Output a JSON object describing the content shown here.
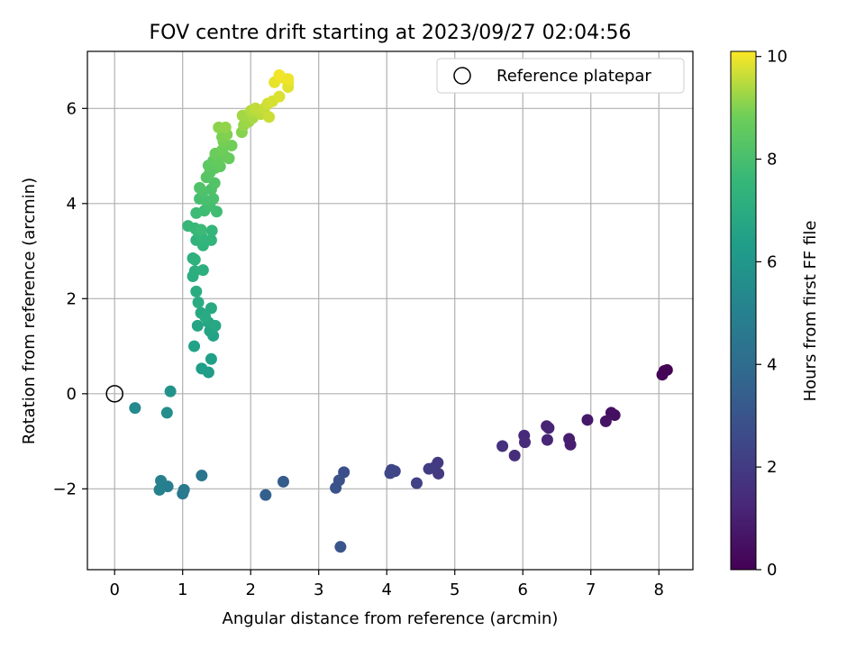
{
  "chart_data": {
    "type": "scatter",
    "title": "FOV centre drift starting at 2023/09/27 02:04:56",
    "xlabel": "Angular distance from reference (arcmin)",
    "ylabel": "Rotation from reference (arcmin)",
    "xlim": [
      -0.4,
      8.5
    ],
    "ylim": [
      -3.7,
      7.2
    ],
    "x_ticks": [
      0,
      1,
      2,
      3,
      4,
      5,
      6,
      7,
      8
    ],
    "y_ticks": [
      -2,
      0,
      2,
      4,
      6
    ],
    "grid": true,
    "legend": {
      "placement": "top-right",
      "entries": [
        "Reference platepar"
      ]
    },
    "reference_point": {
      "x": 0,
      "y": 0
    },
    "colorbar": {
      "label": "Hours from first FF file",
      "range": [
        0,
        10.1
      ],
      "ticks": [
        0,
        2,
        4,
        6,
        8,
        10
      ],
      "colormap": "viridis"
    },
    "points": [
      {
        "x": 8.08,
        "y": 0.48,
        "t": 0.0
      },
      {
        "x": 8.12,
        "y": 0.5,
        "t": 0.05
      },
      {
        "x": 8.05,
        "y": 0.4,
        "t": 0.1
      },
      {
        "x": 7.35,
        "y": -0.45,
        "t": 0.45
      },
      {
        "x": 7.3,
        "y": -0.4,
        "t": 0.5
      },
      {
        "x": 7.22,
        "y": -0.58,
        "t": 0.6
      },
      {
        "x": 6.95,
        "y": -0.55,
        "t": 0.75
      },
      {
        "x": 6.68,
        "y": -0.95,
        "t": 0.9
      },
      {
        "x": 6.7,
        "y": -1.07,
        "t": 0.95
      },
      {
        "x": 6.35,
        "y": -0.68,
        "t": 1.1
      },
      {
        "x": 6.38,
        "y": -0.72,
        "t": 1.15
      },
      {
        "x": 6.36,
        "y": -0.97,
        "t": 1.2
      },
      {
        "x": 6.02,
        "y": -0.88,
        "t": 1.35
      },
      {
        "x": 6.03,
        "y": -1.02,
        "t": 1.4
      },
      {
        "x": 5.88,
        "y": -1.3,
        "t": 1.5
      },
      {
        "x": 5.7,
        "y": -1.1,
        "t": 1.6
      },
      {
        "x": 4.75,
        "y": -1.45,
        "t": 1.9
      },
      {
        "x": 4.76,
        "y": -1.68,
        "t": 1.95
      },
      {
        "x": 4.7,
        "y": -1.55,
        "t": 2.0
      },
      {
        "x": 4.62,
        "y": -1.58,
        "t": 2.05
      },
      {
        "x": 4.44,
        "y": -1.88,
        "t": 2.2
      },
      {
        "x": 4.12,
        "y": -1.63,
        "t": 2.35
      },
      {
        "x": 4.07,
        "y": -1.6,
        "t": 2.4
      },
      {
        "x": 4.05,
        "y": -1.67,
        "t": 2.45
      },
      {
        "x": 3.37,
        "y": -1.65,
        "t": 2.75
      },
      {
        "x": 3.3,
        "y": -1.82,
        "t": 2.85
      },
      {
        "x": 3.25,
        "y": -1.98,
        "t": 2.9
      },
      {
        "x": 3.32,
        "y": -3.22,
        "t": 3.0
      },
      {
        "x": 2.48,
        "y": -1.85,
        "t": 3.3
      },
      {
        "x": 2.22,
        "y": -2.13,
        "t": 3.45
      },
      {
        "x": 1.28,
        "y": -1.72,
        "t": 4.4
      },
      {
        "x": 1.02,
        "y": -2.02,
        "t": 4.6
      },
      {
        "x": 1.0,
        "y": -2.1,
        "t": 4.65
      },
      {
        "x": 0.78,
        "y": -1.95,
        "t": 4.85
      },
      {
        "x": 0.68,
        "y": -1.83,
        "t": 4.95
      },
      {
        "x": 0.66,
        "y": -2.02,
        "t": 5.0
      },
      {
        "x": 0.3,
        "y": -0.3,
        "t": 5.4
      },
      {
        "x": 0.77,
        "y": -0.4,
        "t": 5.6
      },
      {
        "x": 0.82,
        "y": 0.05,
        "t": 5.8
      },
      {
        "x": 1.38,
        "y": 0.45,
        "t": 6.2
      },
      {
        "x": 1.28,
        "y": 0.53,
        "t": 6.3
      },
      {
        "x": 1.42,
        "y": 0.73,
        "t": 6.4
      },
      {
        "x": 1.17,
        "y": 1.0,
        "t": 6.5
      },
      {
        "x": 1.45,
        "y": 1.22,
        "t": 6.55
      },
      {
        "x": 1.4,
        "y": 1.32,
        "t": 6.6
      },
      {
        "x": 1.22,
        "y": 1.43,
        "t": 6.65
      },
      {
        "x": 1.38,
        "y": 1.5,
        "t": 6.7
      },
      {
        "x": 1.48,
        "y": 1.43,
        "t": 6.75
      },
      {
        "x": 1.27,
        "y": 1.7,
        "t": 6.8
      },
      {
        "x": 1.42,
        "y": 1.8,
        "t": 6.85
      },
      {
        "x": 1.33,
        "y": 1.62,
        "t": 6.9
      },
      {
        "x": 1.23,
        "y": 1.92,
        "t": 6.95
      },
      {
        "x": 1.2,
        "y": 2.15,
        "t": 7.0
      },
      {
        "x": 1.15,
        "y": 2.47,
        "t": 7.05
      },
      {
        "x": 1.18,
        "y": 2.58,
        "t": 7.1
      },
      {
        "x": 1.3,
        "y": 2.6,
        "t": 7.15
      },
      {
        "x": 1.15,
        "y": 2.85,
        "t": 7.2
      },
      {
        "x": 1.18,
        "y": 2.82,
        "t": 7.25
      },
      {
        "x": 1.2,
        "y": 3.23,
        "t": 7.3
      },
      {
        "x": 1.3,
        "y": 3.12,
        "t": 7.35
      },
      {
        "x": 1.42,
        "y": 3.23,
        "t": 7.4
      },
      {
        "x": 1.28,
        "y": 3.3,
        "t": 7.45
      },
      {
        "x": 1.43,
        "y": 3.43,
        "t": 7.5
      },
      {
        "x": 1.22,
        "y": 3.42,
        "t": 7.55
      },
      {
        "x": 1.08,
        "y": 3.53,
        "t": 7.6
      },
      {
        "x": 1.18,
        "y": 3.48,
        "t": 7.65
      },
      {
        "x": 1.27,
        "y": 3.45,
        "t": 7.7
      },
      {
        "x": 1.2,
        "y": 3.8,
        "t": 7.75
      },
      {
        "x": 1.32,
        "y": 3.85,
        "t": 7.8
      },
      {
        "x": 1.5,
        "y": 3.83,
        "t": 7.85
      },
      {
        "x": 1.4,
        "y": 3.95,
        "t": 7.9
      },
      {
        "x": 1.25,
        "y": 4.1,
        "t": 7.95
      },
      {
        "x": 1.35,
        "y": 4.05,
        "t": 8.0
      },
      {
        "x": 1.45,
        "y": 4.1,
        "t": 8.05
      },
      {
        "x": 1.3,
        "y": 4.25,
        "t": 8.1
      },
      {
        "x": 1.42,
        "y": 4.3,
        "t": 8.15
      },
      {
        "x": 1.25,
        "y": 4.33,
        "t": 8.2
      },
      {
        "x": 1.47,
        "y": 4.43,
        "t": 8.25
      },
      {
        "x": 1.35,
        "y": 4.55,
        "t": 8.3
      },
      {
        "x": 1.4,
        "y": 4.65,
        "t": 8.35
      },
      {
        "x": 1.48,
        "y": 4.75,
        "t": 8.4
      },
      {
        "x": 1.38,
        "y": 4.8,
        "t": 8.45
      },
      {
        "x": 1.55,
        "y": 4.78,
        "t": 8.5
      },
      {
        "x": 1.45,
        "y": 4.9,
        "t": 8.55
      },
      {
        "x": 1.52,
        "y": 4.85,
        "t": 8.6
      },
      {
        "x": 1.68,
        "y": 4.95,
        "t": 8.65
      },
      {
        "x": 1.62,
        "y": 5.0,
        "t": 8.7
      },
      {
        "x": 1.48,
        "y": 5.05,
        "t": 8.75
      },
      {
        "x": 1.58,
        "y": 5.12,
        "t": 8.8
      },
      {
        "x": 1.72,
        "y": 5.22,
        "t": 8.85
      },
      {
        "x": 1.6,
        "y": 5.3,
        "t": 8.9
      },
      {
        "x": 1.58,
        "y": 5.4,
        "t": 8.95
      },
      {
        "x": 1.65,
        "y": 5.45,
        "t": 9.0
      },
      {
        "x": 1.87,
        "y": 5.5,
        "t": 9.05
      },
      {
        "x": 1.53,
        "y": 5.6,
        "t": 9.1
      },
      {
        "x": 1.63,
        "y": 5.6,
        "t": 9.15
      },
      {
        "x": 1.9,
        "y": 5.65,
        "t": 9.2
      },
      {
        "x": 1.97,
        "y": 5.72,
        "t": 9.25
      },
      {
        "x": 1.88,
        "y": 5.85,
        "t": 9.3
      },
      {
        "x": 2.03,
        "y": 5.8,
        "t": 9.35
      },
      {
        "x": 2.1,
        "y": 5.9,
        "t": 9.4
      },
      {
        "x": 2.0,
        "y": 5.95,
        "t": 9.45
      },
      {
        "x": 2.15,
        "y": 5.88,
        "t": 9.5
      },
      {
        "x": 2.07,
        "y": 6.0,
        "t": 9.55
      },
      {
        "x": 2.2,
        "y": 6.0,
        "t": 9.6
      },
      {
        "x": 2.27,
        "y": 5.82,
        "t": 9.65
      },
      {
        "x": 2.25,
        "y": 6.1,
        "t": 9.7
      },
      {
        "x": 2.32,
        "y": 6.15,
        "t": 9.75
      },
      {
        "x": 2.42,
        "y": 6.25,
        "t": 9.8
      },
      {
        "x": 2.55,
        "y": 6.45,
        "t": 9.85
      },
      {
        "x": 2.55,
        "y": 6.55,
        "t": 9.88
      },
      {
        "x": 2.35,
        "y": 6.55,
        "t": 9.9
      },
      {
        "x": 2.45,
        "y": 6.65,
        "t": 9.93
      },
      {
        "x": 2.55,
        "y": 6.62,
        "t": 9.96
      },
      {
        "x": 2.42,
        "y": 6.7,
        "t": 10.0
      }
    ]
  }
}
